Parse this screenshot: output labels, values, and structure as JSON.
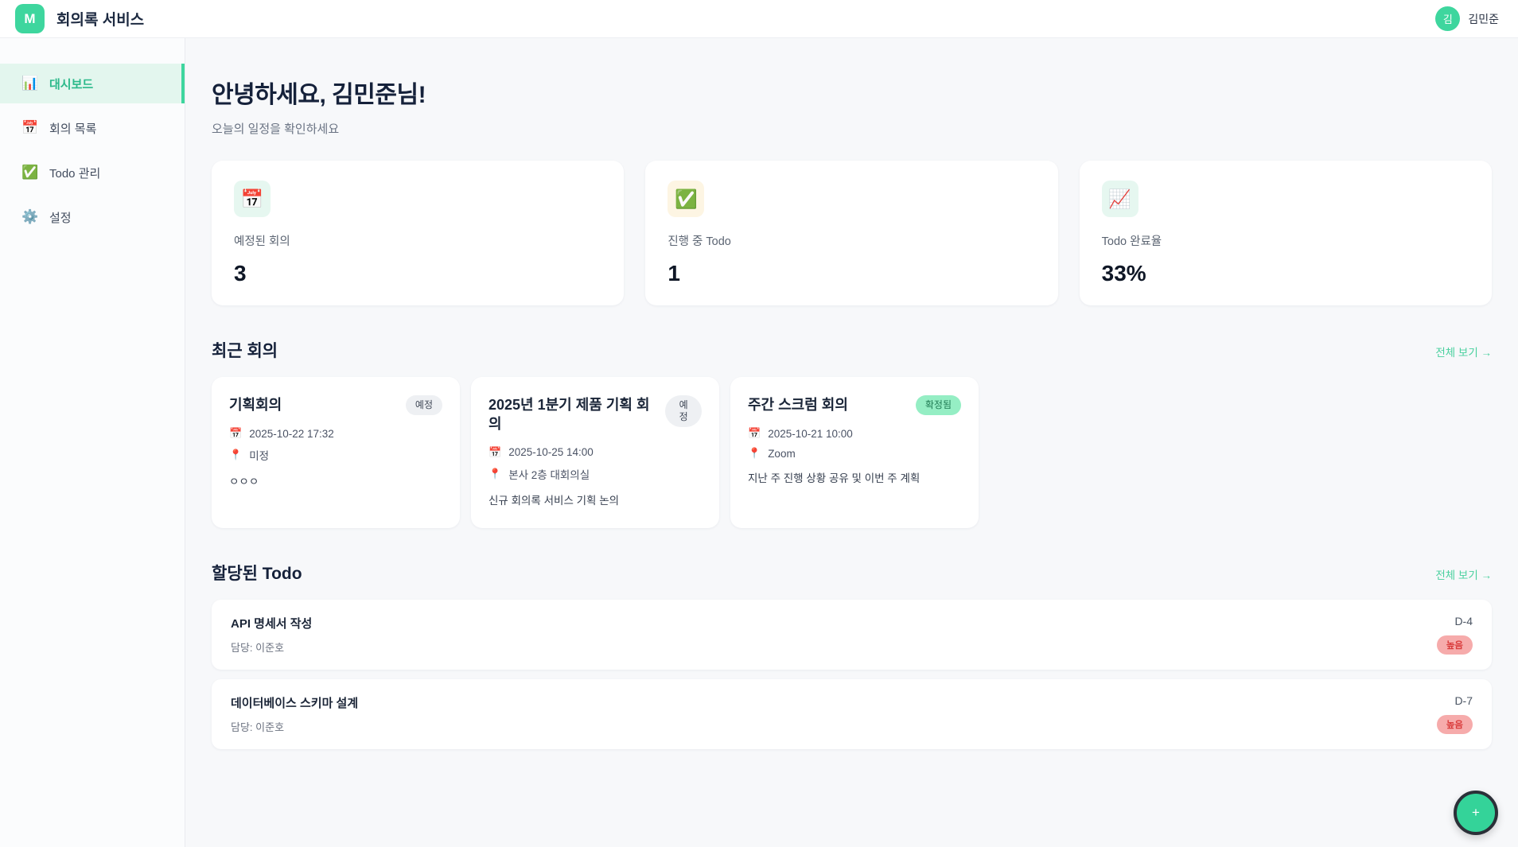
{
  "header": {
    "logo_letter": "M",
    "app_title": "회의록 서비스",
    "user_initial": "김",
    "user_name": "김민준"
  },
  "sidebar": {
    "items": [
      {
        "icon": "📊",
        "label": "대시보드",
        "active": true
      },
      {
        "icon": "📅",
        "label": "회의 목록",
        "active": false
      },
      {
        "icon": "✅",
        "label": "Todo 관리",
        "active": false
      },
      {
        "icon": "⚙️",
        "label": "설정",
        "active": false
      }
    ]
  },
  "greeting": {
    "title": "안녕하세요, 김민준님!",
    "subtitle": "오늘의 일정을 확인하세요"
  },
  "stats": [
    {
      "icon": "📅",
      "label": "예정된 회의",
      "value": "3",
      "tile_bg": "#e6f7f0"
    },
    {
      "icon": "✅",
      "label": "진행 중 Todo",
      "value": "1",
      "tile_bg": "#fdf5e3"
    },
    {
      "icon": "📈",
      "label": "Todo 완료율",
      "value": "33%",
      "tile_bg": "#e6f7f0"
    }
  ],
  "meta_icons": {
    "calendar": "📅",
    "pin": "📍"
  },
  "recent_meetings": {
    "title": "최근 회의",
    "view_all": "전체 보기 →",
    "cards": [
      {
        "title": "기획회의",
        "badge": "예정",
        "date": "2025-10-22 17:32",
        "location": "미정",
        "description": "ㅇㅇㅇ"
      },
      {
        "title": "2025년 1분기 제품 기획 회의",
        "badge": "예정",
        "date": "2025-10-25 14:00",
        "location": "본사 2층 대회의실",
        "description": "신규 회의록 서비스 기획 논의"
      },
      {
        "title": "주간 스크럼 회의",
        "badge": "확정됨",
        "date": "2025-10-21 10:00",
        "location": "Zoom",
        "description": "지난 주 진행 상황 공유 및 이번 주 계획"
      }
    ]
  },
  "todos": {
    "title": "할당된 Todo",
    "view_all": "전체 보기 →",
    "items": [
      {
        "title": "API 명세서 작성",
        "assignee": "담당: 이준호",
        "dday": "D-4",
        "priority": "높음"
      },
      {
        "title": "데이터베이스 스키마 설계",
        "assignee": "담당: 이준호",
        "dday": "D-7",
        "priority": "높음"
      }
    ]
  },
  "fab": {
    "label": "+"
  },
  "colors": {
    "accent_green": "#34d399",
    "active_nav_bg": "#e3f6ee",
    "active_nav_text": "#2bb98a",
    "link_green": "#49d09e",
    "badge_gray_bg": "#eef0f3",
    "badge_green_bg": "#95eec4",
    "badge_green_text": "#1e7a52",
    "priority_bg": "#f6abab",
    "priority_text": "#d93b3b",
    "page_bg": "#f7f8fa"
  }
}
